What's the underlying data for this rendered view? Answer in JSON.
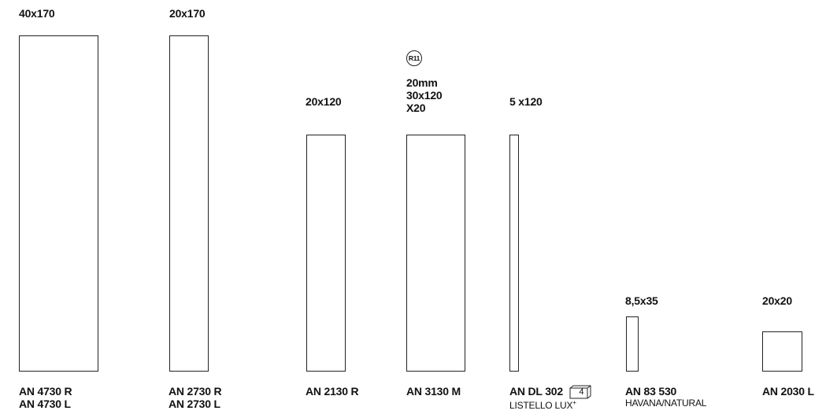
{
  "items": [
    {
      "size": "40x170",
      "codes": [
        "AN 4730 R",
        "AN 4730 L"
      ]
    },
    {
      "size": "20x170",
      "codes": [
        "AN 2730 R",
        "AN 2730 L"
      ]
    },
    {
      "size": "20x120",
      "codes": [
        "AN 2130 R"
      ]
    },
    {
      "size_lines": [
        "20mm",
        "30x120",
        "X20"
      ],
      "badge": "R11",
      "codes": [
        "AN 3130 M"
      ]
    },
    {
      "size": "5 x120",
      "codes": [
        "AN DL 302"
      ],
      "qty": "4",
      "subtitle": "LISTELLO LUX",
      "subtitle_sup": "+"
    },
    {
      "size": "8,5x35",
      "codes": [
        "AN 83 530"
      ],
      "subtitle": "HAVANA/NATURAL"
    },
    {
      "size": "20x20",
      "codes": [
        "AN 2030 L"
      ]
    }
  ],
  "icons": {
    "badge": "r11-slip-rating-badge-icon",
    "qty": "box-quantity-icon"
  }
}
